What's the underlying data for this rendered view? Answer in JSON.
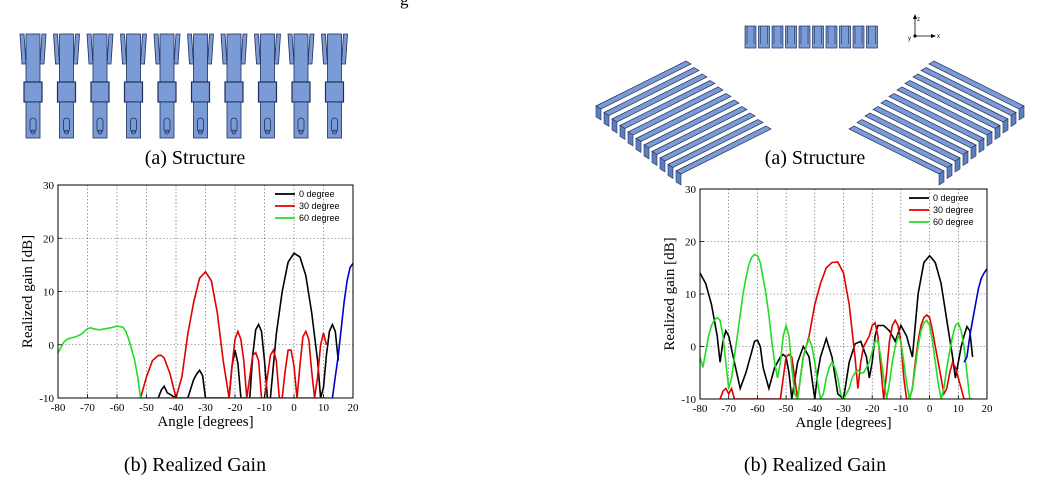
{
  "top_partial_text": "g",
  "left": {
    "structure_caption": "(a) Structure",
    "gain_caption": "(b) Realized Gain"
  },
  "right": {
    "structure_caption": "(a) Structure",
    "gain_caption": "(b) Realized Gain",
    "axis_triad": {
      "z": "z",
      "x": "x",
      "y": "y"
    }
  },
  "colors": {
    "antenna_fill": "#7a9bd6",
    "antenna_stroke": "#1f2f5a",
    "series_0": "#000000",
    "series_30": "#e00000",
    "series_60": "#22dd22",
    "series_extra": "#0000cc"
  },
  "chart_data": [
    {
      "type": "line",
      "xlabel": "Angle [degrees]",
      "ylabel": "Realized gain [dB]",
      "xlim": [
        -80,
        20
      ],
      "ylim": [
        -10,
        30
      ],
      "xticks": [
        -80,
        -70,
        -60,
        -50,
        -40,
        -30,
        -20,
        -10,
        0,
        10,
        20
      ],
      "yticks": [
        -10,
        0,
        10,
        20,
        30
      ],
      "grid": true,
      "legend_position": "top-right",
      "series": [
        {
          "name": "0 degree",
          "color": "#000000",
          "x": [
            -46,
            -45,
            -44,
            -43,
            -40,
            -36,
            -34,
            -33,
            -32,
            -31,
            -30,
            -28,
            -24,
            -22,
            -21,
            -20,
            -19,
            -18,
            -17,
            -15,
            -14,
            -13,
            -12,
            -11,
            -10,
            -9,
            -8,
            -6,
            -4,
            -2,
            0,
            2,
            4,
            6,
            8,
            9,
            10,
            11,
            12,
            13,
            14,
            15
          ],
          "y": [
            -10,
            -8.5,
            -7.8,
            -9,
            -10,
            -10,
            -6.5,
            -5.5,
            -4.8,
            -5.8,
            -10,
            -10,
            -10,
            -10,
            -4,
            -1,
            -3.5,
            -10,
            -10,
            -10,
            -2,
            2.8,
            3.8,
            2.5,
            -3,
            -10,
            -10,
            2,
            10,
            15.5,
            17.2,
            16.5,
            13,
            6,
            -3,
            -10,
            -8,
            -2,
            2.5,
            3.8,
            2.5,
            -3
          ]
        },
        {
          "name": "30 degree",
          "color": "#e00000",
          "x": [
            -52,
            -50,
            -48,
            -46,
            -45,
            -44,
            -42,
            -40,
            -38,
            -36,
            -34,
            -32,
            -30,
            -28,
            -26,
            -24,
            -22,
            -21,
            -20,
            -19,
            -18,
            -17,
            -16,
            -15,
            -14,
            -13,
            -12,
            -11,
            -10,
            -9,
            -8,
            -7,
            -6,
            -5,
            -4,
            -3,
            -2,
            -1,
            0,
            1,
            2,
            3,
            4,
            5,
            6,
            7,
            8,
            9,
            10,
            11
          ],
          "y": [
            -10,
            -6,
            -3,
            -2,
            -2,
            -2.5,
            -5.5,
            -10,
            -6,
            2,
            8,
            12.5,
            13.7,
            12,
            6,
            -3,
            -10,
            -4,
            1,
            2.5,
            1,
            -3,
            -10,
            -6,
            -2,
            -1.5,
            -3,
            -10,
            -10,
            -6,
            -2,
            -1,
            -3,
            -10,
            -10,
            -5,
            -1,
            -1,
            -4,
            -10,
            -4,
            1.5,
            2.5,
            1,
            -5,
            -10,
            -6,
            0,
            2.2,
            0
          ]
        },
        {
          "name": "60 degree",
          "color": "#22dd22",
          "x": [
            -80,
            -79,
            -78,
            -77,
            -76,
            -74,
            -72,
            -71,
            -70,
            -69,
            -68,
            -66,
            -64,
            -62,
            -60,
            -58,
            -57,
            -56,
            -55,
            -54,
            -53,
            -52,
            -51,
            -50,
            -49,
            -48,
            -47,
            -46,
            -45,
            -44,
            -43,
            -42,
            -41,
            -40,
            -39,
            -38,
            -37,
            -36,
            -35,
            -34,
            -33,
            -32,
            -31,
            -30,
            -29,
            -28,
            -27,
            -26,
            -25,
            -24,
            -23,
            -22,
            -21,
            -20,
            -19,
            -18,
            -17,
            -16,
            -15,
            -14,
            -13,
            -12,
            -11,
            -10,
            -9,
            -8,
            -7,
            -6,
            -5,
            -4,
            -3,
            -2,
            -1,
            0,
            1,
            2,
            3,
            4,
            5,
            6,
            7,
            8,
            9,
            10,
            11,
            12
          ],
          "y": [
            -1.5,
            -0.5,
            0.5,
            1,
            1.2,
            1.5,
            2,
            2.5,
            3,
            3.2,
            3,
            2.8,
            3,
            3.2,
            3.5,
            3.3,
            2.5,
            1,
            -1,
            -3,
            -6,
            -10,
            -10,
            -10,
            -10,
            -10,
            -10,
            -10,
            -10,
            -10,
            -10,
            -10,
            -10,
            -10,
            -10,
            -10,
            -10,
            -10,
            -10,
            -10,
            -10,
            -10,
            -10,
            -10,
            -10,
            -10,
            -10,
            -10,
            -10,
            -10,
            -10,
            -10,
            -10,
            -10,
            -10,
            -10,
            -10,
            -10,
            -10,
            -10,
            -10,
            -10,
            -10,
            -10,
            -10,
            -10,
            -10,
            -10,
            -10,
            -10,
            -10,
            -10,
            -10,
            -10,
            -10,
            -10,
            -10,
            -10,
            -10,
            -10,
            -10,
            -10,
            -10,
            -10,
            -10,
            -10
          ]
        },
        {
          "name": "",
          "color": "#0000cc",
          "x": [
            13,
            14,
            15,
            16,
            17,
            18,
            19,
            20
          ],
          "y": [
            -10,
            -6,
            -2,
            3,
            8,
            12,
            14.5,
            15.3
          ]
        }
      ]
    },
    {
      "type": "line",
      "xlabel": "Angle [degrees]",
      "ylabel": "Realized gain [dB]",
      "xlim": [
        -80,
        20
      ],
      "ylim": [
        -10,
        30
      ],
      "xticks": [
        -80,
        -70,
        -60,
        -50,
        -40,
        -30,
        -20,
        -10,
        0,
        10,
        20
      ],
      "yticks": [
        -10,
        0,
        10,
        20,
        30
      ],
      "grid": true,
      "legend_position": "top-right",
      "series": [
        {
          "name": "0 degree",
          "color": "#000000",
          "x": [
            -80,
            -78,
            -76,
            -74,
            -73,
            -72,
            -71,
            -70,
            -68,
            -66,
            -64,
            -62,
            -61,
            -60,
            -59,
            -58,
            -56,
            -54,
            -52,
            -51,
            -50,
            -49,
            -48,
            -46,
            -44,
            -42,
            -41,
            -40,
            -39,
            -38,
            -36,
            -34,
            -32,
            -30,
            -28,
            -26,
            -24,
            -22,
            -21,
            -20,
            -19,
            -18,
            -16,
            -14,
            -12,
            -10,
            -8,
            -6,
            -4,
            -2,
            0,
            2,
            4,
            6,
            8,
            9,
            10,
            11,
            12,
            13,
            14,
            15
          ],
          "y": [
            14,
            12,
            8,
            2,
            -3,
            1,
            3,
            2,
            -3,
            -8,
            -5,
            -1,
            1,
            1.2,
            0,
            -4,
            -8,
            -4,
            -2,
            -1.5,
            -2,
            -5,
            -10,
            -3,
            0,
            -2,
            -6,
            -10,
            -5,
            -2,
            1.5,
            -2,
            -9,
            -10,
            -3,
            0.5,
            1,
            -2,
            -6,
            -3,
            2,
            4,
            4,
            3,
            1,
            4,
            2,
            -2,
            10,
            16,
            17.3,
            16,
            12,
            5,
            -2,
            -6,
            -3,
            0,
            2,
            3.8,
            3,
            -2
          ]
        },
        {
          "name": "30 degree",
          "color": "#e00000",
          "x": [
            -73,
            -72,
            -71,
            -70,
            -69,
            -68,
            -60,
            -52,
            -51,
            -50,
            -49,
            -48,
            -47,
            -46,
            -45,
            -44,
            -42,
            -40,
            -38,
            -36,
            -34,
            -32,
            -30,
            -28,
            -27,
            -26,
            -25,
            -24,
            -23,
            -22,
            -21,
            -20,
            -19,
            -18,
            -17,
            -16,
            -15,
            -14,
            -13,
            -12,
            -11,
            -10,
            -9,
            -8,
            -7,
            -6,
            -5,
            -4,
            -3,
            -2,
            -1,
            0,
            1,
            2,
            3,
            4,
            5,
            6,
            7,
            8,
            9,
            10,
            11,
            12,
            13,
            14,
            15
          ],
          "y": [
            -10,
            -8.5,
            -8,
            -9,
            -8,
            -10,
            -10,
            -10,
            -6,
            -2,
            -1.5,
            -2,
            -6,
            -10,
            -6,
            -2,
            2,
            8,
            12,
            15,
            16,
            16.1,
            14,
            8,
            3,
            -2,
            -8,
            -3,
            0,
            1,
            2,
            4,
            4.5,
            2,
            -4,
            -10,
            -5,
            1,
            4,
            5,
            4,
            1,
            -6,
            -10,
            -10,
            -8,
            -3,
            1,
            4,
            5.5,
            6,
            5.5,
            3,
            0,
            -3,
            -6,
            -9,
            -8,
            -5,
            -3,
            -4,
            -6,
            -8,
            -10,
            -10,
            -10,
            -10
          ]
        },
        {
          "name": "60 degree",
          "color": "#22dd22",
          "x": [
            -80,
            -79,
            -78,
            -77,
            -76,
            -75,
            -74,
            -73,
            -72,
            -71,
            -70,
            -69,
            -68,
            -67,
            -66,
            -65,
            -64,
            -63,
            -62,
            -61,
            -60,
            -59,
            -58,
            -57,
            -56,
            -55,
            -54,
            -53,
            -52,
            -51,
            -50,
            -49,
            -48,
            -47,
            -46,
            -45,
            -44,
            -43,
            -42,
            -41,
            -40,
            -39,
            -38,
            -37,
            -36,
            -35,
            -34,
            -33,
            -32,
            -31,
            -30,
            -29,
            -28,
            -27,
            -26,
            -25,
            -24,
            -23,
            -22,
            -21,
            -20,
            -19,
            -18,
            -17,
            -16,
            -15,
            -14,
            -13,
            -12,
            -11,
            -10,
            -9,
            -8,
            -7,
            -6,
            -5,
            -4,
            -3,
            -2,
            -1,
            0,
            1,
            2,
            3,
            4,
            5,
            6,
            7,
            8,
            9,
            10,
            11,
            12,
            13,
            14
          ],
          "y": [
            -2,
            -4,
            -1,
            2,
            4,
            5,
            5.5,
            5,
            2,
            -3,
            -8,
            -6,
            -2,
            2,
            6,
            10,
            13,
            15.5,
            17,
            17.5,
            17.3,
            16,
            13,
            10,
            6,
            1,
            -3,
            -6,
            -3,
            2,
            4,
            2,
            -4,
            -9,
            -10,
            -6,
            -2,
            0,
            1.5,
            0,
            -3,
            -7,
            -10,
            -9,
            -6,
            -4,
            -3,
            -4,
            -6,
            -9,
            -10,
            -9,
            -8,
            -6,
            -5,
            -4.5,
            -5,
            -5,
            -4,
            -3,
            -1,
            1,
            1,
            -2,
            -6,
            -10,
            -7,
            -3,
            0,
            2,
            1,
            -3,
            -7,
            -10,
            -8,
            -4,
            0,
            3,
            4.5,
            5,
            4,
            1,
            -3,
            -7,
            -10,
            -8,
            -4,
            -1,
            2,
            4,
            4.5,
            3,
            0,
            -5,
            -10
          ]
        },
        {
          "name": "",
          "color": "#0000cc",
          "x": [
            12,
            13,
            14,
            15,
            16,
            17,
            18,
            19,
            20
          ],
          "y": [
            -3,
            -2,
            2,
            5,
            8,
            11,
            13,
            14,
            14.8
          ]
        }
      ]
    }
  ]
}
